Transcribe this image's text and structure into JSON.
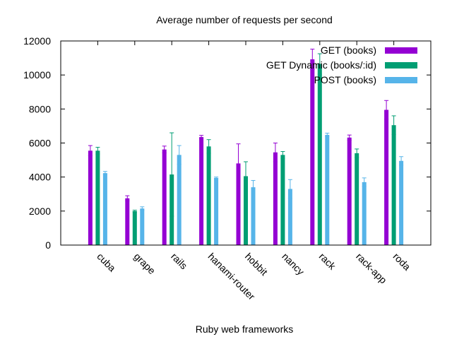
{
  "chart_data": {
    "type": "bar",
    "title": "Average number of requests per second",
    "xlabel": "Ruby web frameworks",
    "ylabel": "",
    "ylim": [
      0,
      12000
    ],
    "yticks": [
      0,
      2000,
      4000,
      6000,
      8000,
      10000,
      12000
    ],
    "ytick_labels": [
      "0",
      "2000",
      "4000",
      "6000",
      "8000",
      "10000",
      "12000"
    ],
    "grid": false,
    "legend_position": "top-right",
    "error_bars": true,
    "categories": [
      "cuba",
      "grape",
      "rails",
      "hanami-router",
      "hobbit",
      "nancy",
      "rack",
      "rack-app",
      "roda"
    ],
    "series": [
      {
        "name": "GET (books)",
        "color": "#9400d3",
        "values": [
          5550,
          2750,
          5620,
          6350,
          4800,
          5450,
          10920,
          6320,
          7950
        ],
        "errors": [
          300,
          150,
          200,
          100,
          1150,
          550,
          600,
          150,
          550
        ]
      },
      {
        "name": "GET Dynamic (books/:id)",
        "color": "#009e73",
        "values": [
          5550,
          2000,
          4150,
          5800,
          4050,
          5300,
          10650,
          5400,
          7050
        ],
        "errors": [
          200,
          50,
          2450,
          400,
          850,
          200,
          600,
          250,
          550
        ]
      },
      {
        "name": "POST (books)",
        "color": "#56b4e9",
        "values": [
          4230,
          2150,
          5300,
          3950,
          3400,
          3300,
          6480,
          3700,
          4950
        ],
        "errors": [
          100,
          100,
          550,
          50,
          400,
          550,
          100,
          250,
          250
        ]
      }
    ]
  }
}
